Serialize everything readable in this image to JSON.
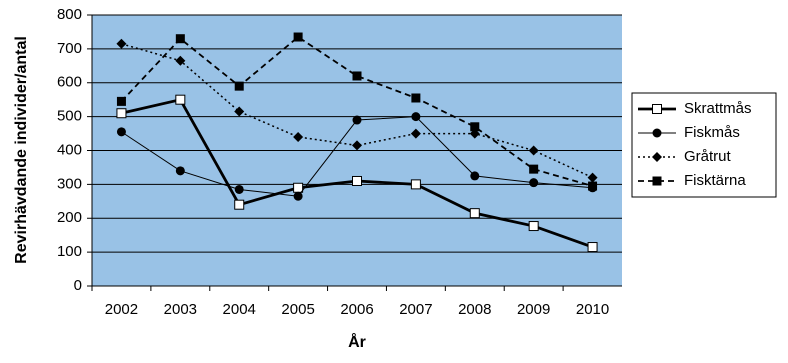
{
  "chart_data": {
    "type": "line",
    "x_label": "År",
    "y_label": "Revirhävdande individer/antal",
    "categories": [
      "2002",
      "2003",
      "2004",
      "2005",
      "2006",
      "2007",
      "2008",
      "2009",
      "2010"
    ],
    "series": [
      {
        "name": "Skrattmås",
        "color": "#000000",
        "values": [
          510,
          550,
          240,
          290,
          310,
          300,
          215,
          177,
          115
        ]
      },
      {
        "name": "Fiskmås",
        "color": "#000000",
        "values": [
          455,
          340,
          285,
          265,
          490,
          500,
          325,
          305,
          290
        ]
      },
      {
        "name": "Gråtrut",
        "color": "#000000",
        "values": [
          715,
          665,
          515,
          440,
          415,
          450,
          450,
          400,
          320
        ]
      },
      {
        "name": "Fisktärna",
        "color": "#000000",
        "values": [
          545,
          730,
          590,
          735,
          620,
          555,
          470,
          345,
          295
        ]
      }
    ],
    "ylim": [
      0,
      800
    ],
    "yticks": [
      0,
      100,
      200,
      300,
      400,
      500,
      600,
      700,
      800
    ],
    "grid": true,
    "legend": "right",
    "background": "#99c2e6"
  }
}
